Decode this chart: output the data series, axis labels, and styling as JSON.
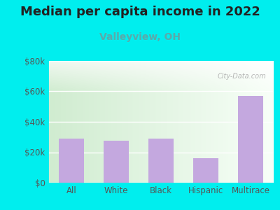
{
  "title": "Median per capita income in 2022",
  "subtitle": "Valleyview, OH",
  "categories": [
    "All",
    "White",
    "Black",
    "Hispanic",
    "Multirace"
  ],
  "values": [
    29000,
    27500,
    29000,
    16000,
    57000
  ],
  "bar_color": "#c4a8df",
  "title_fontsize": 13,
  "subtitle_fontsize": 10,
  "subtitle_color": "#5aaaaa",
  "title_color": "#222222",
  "background_outer": "#00eeee",
  "background_inner_left": "#d0ecd0",
  "background_inner_right": "#f5fff5",
  "background_top_band": "#eaf5f0",
  "ylim": [
    0,
    80000
  ],
  "yticks": [
    0,
    20000,
    40000,
    60000,
    80000
  ],
  "ytick_labels": [
    "$0",
    "$20k",
    "$40k",
    "$60k",
    "$80k"
  ],
  "watermark": "City-Data.com",
  "tick_fontsize": 8.5,
  "bar_width": 0.55
}
